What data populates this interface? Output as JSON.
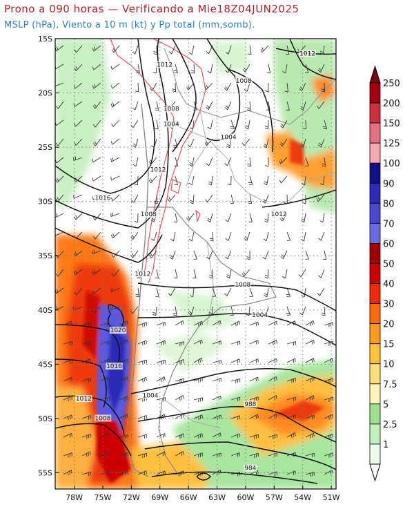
{
  "header": {
    "title": "Prono a 090 horas — Verificando a Mie18Z04JUN2025",
    "subtitle": "MSLP (hPa), Viento a 10 m (kt) y Pp total (mm,somb)."
  },
  "map": {
    "lat_labels": [
      "15S",
      "20S",
      "25S",
      "30S",
      "35S",
      "40S",
      "45S",
      "50S",
      "55S"
    ],
    "lon_labels": [
      "78W",
      "75W",
      "72W",
      "69W",
      "66W",
      "63W",
      "60W",
      "57W",
      "54W",
      "51W"
    ],
    "isobar_labels": [
      {
        "text": "1012",
        "lon": -68.5,
        "lat": -17.5
      },
      {
        "text": "1012",
        "lon": -53.5,
        "lat": -16.5
      },
      {
        "text": "1008",
        "lon": -60.2,
        "lat": -19.0
      },
      {
        "text": "1008",
        "lon": -67.8,
        "lat": -21.6
      },
      {
        "text": "1004",
        "lon": -67.8,
        "lat": -23.0
      },
      {
        "text": "1004",
        "lon": -61.8,
        "lat": -24.2
      },
      {
        "text": "1012",
        "lon": -69.2,
        "lat": -27.2
      },
      {
        "text": "1016",
        "lon": -75.0,
        "lat": -29.8
      },
      {
        "text": "1008",
        "lon": -70.2,
        "lat": -31.3
      },
      {
        "text": "1012",
        "lon": -56.5,
        "lat": -31.3
      },
      {
        "text": "1012",
        "lon": -70.8,
        "lat": -36.8
      },
      {
        "text": "1008",
        "lon": -60.3,
        "lat": -37.8
      },
      {
        "text": "1004",
        "lon": -58.5,
        "lat": -40.6
      },
      {
        "text": "1020",
        "lon": -73.4,
        "lat": -42.0
      },
      {
        "text": "1016",
        "lon": -73.8,
        "lat": -45.3
      },
      {
        "text": "1004",
        "lon": -70.0,
        "lat": -48.0
      },
      {
        "text": "1012",
        "lon": -77.0,
        "lat": -48.3
      },
      {
        "text": "988",
        "lon": -59.5,
        "lat": -48.8
      },
      {
        "text": "1008",
        "lon": -75.0,
        "lat": -50.1
      },
      {
        "text": "984",
        "lon": -59.5,
        "lat": -54.7
      }
    ]
  },
  "colorbar": {
    "labels": [
      "1",
      "2.5",
      "5",
      "7.5",
      "10",
      "15",
      "20",
      "30",
      "40",
      "50",
      "60",
      "70",
      "80",
      "90",
      "100",
      "125",
      "150",
      "200",
      "250"
    ],
    "colors": [
      "#eefaee",
      "#c3efbe",
      "#9ee08e",
      "#fff4b8",
      "#ffe07a",
      "#ffc23a",
      "#ff9a1a",
      "#ff6a10",
      "#ee2a0a",
      "#cc0000",
      "#a00000",
      "#6a6ae8",
      "#4848d2",
      "#2c2cb8",
      "#10108e",
      "#f4a8b0",
      "#e87080",
      "#cc3040",
      "#a00010"
    ]
  },
  "chart_data": {
    "type": "map",
    "projection": "latlon",
    "lon_range": [
      -80,
      -50.5
    ],
    "lat_range": [
      -15,
      -56.5
    ],
    "fields": [
      "MSLP (hPa)",
      "Viento a 10 m (kt)",
      "Pp total (mm,somb)"
    ],
    "precip_bins_mm": [
      1,
      2.5,
      5,
      7.5,
      10,
      15,
      20,
      30,
      40,
      50,
      60,
      70,
      80,
      90,
      100,
      125,
      150,
      200,
      250
    ],
    "isobar_values_hpa": [
      984,
      988,
      1004,
      1008,
      1012,
      1016,
      1020
    ]
  }
}
